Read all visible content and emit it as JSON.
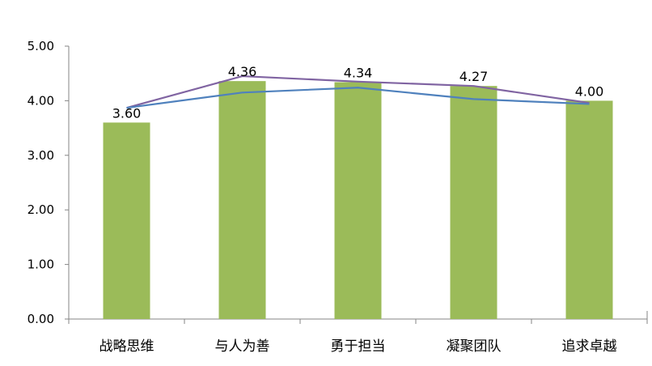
{
  "chart_data": {
    "type": "bar",
    "categories": [
      "战略思维",
      "与人为善",
      "勇于担当",
      "凝聚团队",
      "追求卓越"
    ],
    "values": [
      3.6,
      4.36,
      4.34,
      4.27,
      4.0
    ],
    "value_labels": [
      "3.60",
      "4.36",
      "4.34",
      "4.27",
      "4.00"
    ],
    "lines": [
      {
        "values": [
          3.87,
          4.45,
          4.35,
          4.27,
          3.96
        ],
        "color": "#8064a2"
      },
      {
        "values": [
          3.87,
          4.15,
          4.24,
          4.03,
          3.94
        ],
        "color": "#4f81bd"
      }
    ],
    "y_ticks": [
      "0.00",
      "1.00",
      "2.00",
      "3.00",
      "4.00",
      "5.00"
    ],
    "ylim": [
      0,
      5
    ],
    "bar_color": "#9bbb59",
    "grid": false,
    "title": "",
    "xlabel": "",
    "ylabel": ""
  }
}
